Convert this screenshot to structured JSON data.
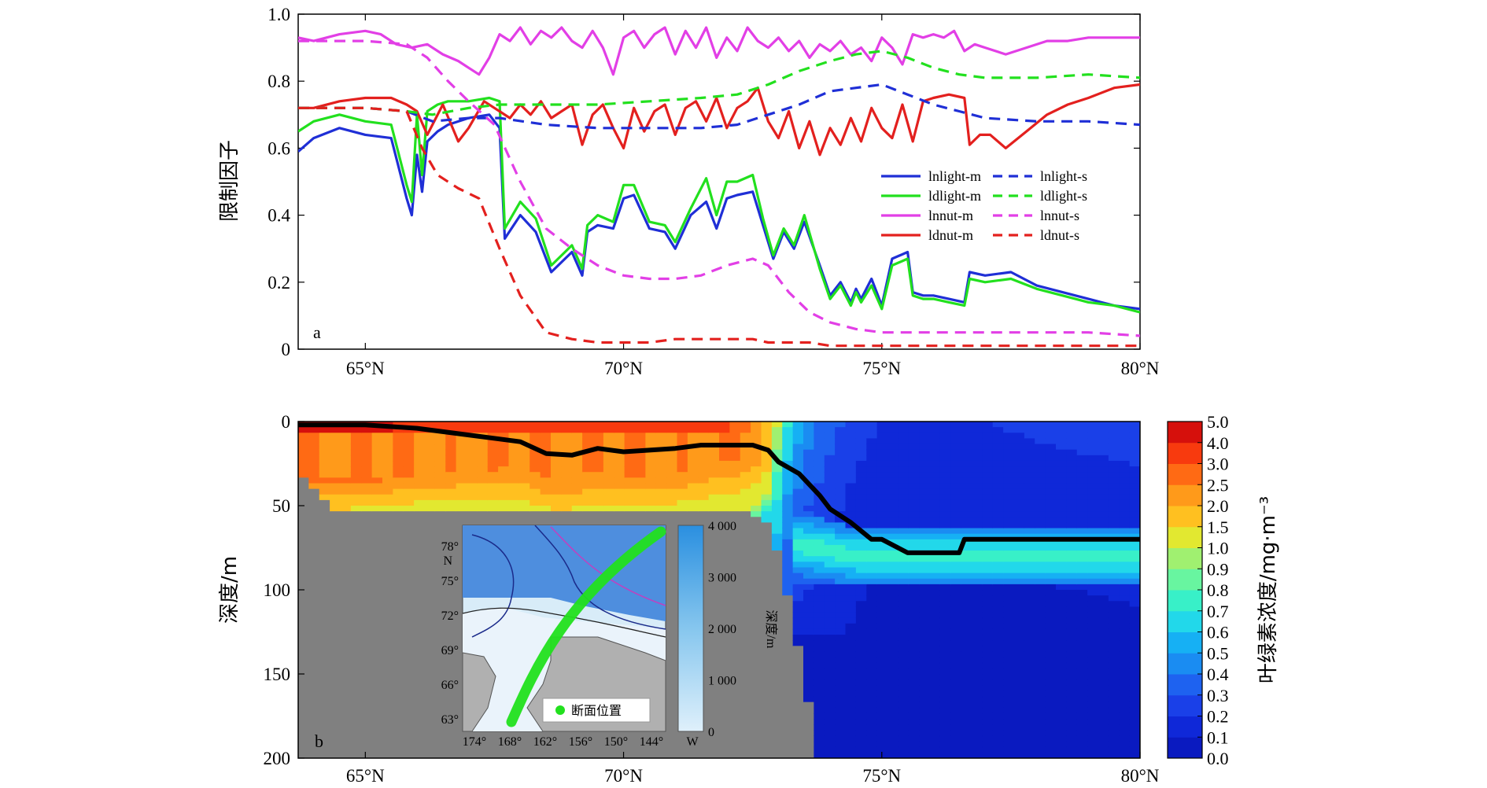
{
  "panel_a": {
    "panel_label": "a",
    "ylabel": "限制因子",
    "yticks": [
      "0",
      "0.2",
      "0.4",
      "0.6",
      "0.8",
      "1.0"
    ],
    "xticks": [
      "65°N",
      "70°N",
      "75°N",
      "80°N"
    ]
  },
  "panel_b": {
    "panel_label": "b",
    "ylabel": "深度/m",
    "yticks": [
      "0",
      "50",
      "100",
      "150",
      "200"
    ],
    "xticks": [
      "65°N",
      "70°N",
      "75°N",
      "80°N"
    ],
    "colorbar_label": "叶绿素浓度/mg·m⁻³",
    "colorbar_ticks": [
      "0.0",
      "0.1",
      "0.2",
      "0.3",
      "0.4",
      "0.5",
      "0.6",
      "0.7",
      "0.8",
      "0.9",
      "1.0",
      "1.5",
      "2.0",
      "2.5",
      "3.0",
      "4.0",
      "5.0"
    ]
  },
  "inset": {
    "lat_labels": [
      "78°",
      "75°",
      "72°",
      "69°",
      "66°",
      "63°"
    ],
    "lat_suffix": "N",
    "lon_labels": [
      "174°",
      "168°",
      "162°",
      "156°",
      "150°",
      "144°"
    ],
    "lon_suffix": "W",
    "legend_label": "断面位置",
    "depth_axis_label": "深度/m",
    "depth_ticks": [
      "0",
      "1 000",
      "2 000",
      "3 000",
      "4 000"
    ]
  },
  "colors": {
    "blue": "#1f2fd6",
    "green": "#22e01e",
    "magenta": "#e23fe6",
    "red": "#e3201e",
    "land": "#808080",
    "contour": "#000000"
  },
  "chart_data": [
    {
      "type": "line",
      "panel": "a",
      "xlim": [
        63.7,
        80.0
      ],
      "ylim": [
        0,
        1.0
      ],
      "series": [
        {
          "name": "lnlight-m",
          "color": "blue",
          "style": "solid",
          "x": [
            63.7,
            64.0,
            64.5,
            65.0,
            65.5,
            65.8,
            65.9,
            66.0,
            66.1,
            66.2,
            66.4,
            66.6,
            67.0,
            67.4,
            67.6,
            67.7,
            68.0,
            68.3,
            68.6,
            69.0,
            69.2,
            69.3,
            69.5,
            69.8,
            70.0,
            70.2,
            70.5,
            70.8,
            71.0,
            71.3,
            71.6,
            71.8,
            72.0,
            72.2,
            72.5,
            72.7,
            72.9,
            73.1,
            73.3,
            73.5,
            73.8,
            74.0,
            74.2,
            74.4,
            74.5,
            74.6,
            74.8,
            75.0,
            75.2,
            75.5,
            75.6,
            75.8,
            76.0,
            76.3,
            76.6,
            76.7,
            77.0,
            77.5,
            78.0,
            78.5,
            79.0,
            79.5,
            80.0
          ],
          "y": [
            0.59,
            0.63,
            0.66,
            0.64,
            0.63,
            0.45,
            0.4,
            0.58,
            0.47,
            0.62,
            0.65,
            0.67,
            0.69,
            0.7,
            0.66,
            0.33,
            0.4,
            0.35,
            0.23,
            0.29,
            0.22,
            0.35,
            0.37,
            0.36,
            0.45,
            0.46,
            0.36,
            0.35,
            0.3,
            0.4,
            0.44,
            0.36,
            0.45,
            0.46,
            0.47,
            0.37,
            0.27,
            0.35,
            0.3,
            0.38,
            0.25,
            0.16,
            0.2,
            0.14,
            0.18,
            0.15,
            0.21,
            0.13,
            0.27,
            0.29,
            0.17,
            0.16,
            0.16,
            0.15,
            0.14,
            0.23,
            0.22,
            0.23,
            0.19,
            0.17,
            0.15,
            0.13,
            0.12
          ]
        },
        {
          "name": "ldlight-m",
          "color": "green",
          "style": "solid",
          "x": [
            63.7,
            64.0,
            64.5,
            65.0,
            65.5,
            65.8,
            65.9,
            66.0,
            66.1,
            66.2,
            66.4,
            66.6,
            67.0,
            67.4,
            67.6,
            67.7,
            68.0,
            68.3,
            68.6,
            69.0,
            69.2,
            69.3,
            69.5,
            69.8,
            70.0,
            70.2,
            70.5,
            70.8,
            71.0,
            71.3,
            71.6,
            71.8,
            72.0,
            72.2,
            72.5,
            72.7,
            72.9,
            73.1,
            73.3,
            73.5,
            73.8,
            74.0,
            74.2,
            74.4,
            74.5,
            74.6,
            74.8,
            75.0,
            75.2,
            75.5,
            75.6,
            75.8,
            76.0,
            76.3,
            76.6,
            76.7,
            77.0,
            77.5,
            78.0,
            78.5,
            79.0,
            79.5,
            80.0
          ],
          "y": [
            0.65,
            0.68,
            0.7,
            0.68,
            0.67,
            0.49,
            0.44,
            0.7,
            0.52,
            0.71,
            0.73,
            0.74,
            0.74,
            0.75,
            0.74,
            0.36,
            0.44,
            0.39,
            0.25,
            0.31,
            0.24,
            0.37,
            0.4,
            0.38,
            0.49,
            0.49,
            0.38,
            0.37,
            0.32,
            0.42,
            0.51,
            0.4,
            0.5,
            0.5,
            0.52,
            0.39,
            0.28,
            0.36,
            0.31,
            0.4,
            0.24,
            0.15,
            0.19,
            0.13,
            0.17,
            0.14,
            0.19,
            0.12,
            0.25,
            0.27,
            0.16,
            0.15,
            0.15,
            0.14,
            0.13,
            0.21,
            0.2,
            0.21,
            0.18,
            0.16,
            0.14,
            0.13,
            0.11
          ]
        },
        {
          "name": "lnnut-m",
          "color": "magenta",
          "style": "solid",
          "x": [
            63.7,
            64.0,
            64.5,
            65.0,
            65.3,
            65.6,
            65.9,
            66.2,
            66.5,
            66.8,
            67.0,
            67.2,
            67.4,
            67.6,
            67.8,
            68.0,
            68.2,
            68.4,
            68.6,
            68.8,
            69.0,
            69.2,
            69.4,
            69.6,
            69.8,
            70.0,
            70.2,
            70.4,
            70.6,
            70.8,
            71.0,
            71.2,
            71.4,
            71.6,
            71.8,
            72.0,
            72.2,
            72.4,
            72.6,
            72.8,
            73.0,
            73.2,
            73.4,
            73.6,
            73.8,
            74.0,
            74.2,
            74.4,
            74.6,
            74.8,
            75.0,
            75.2,
            75.4,
            75.6,
            75.8,
            76.0,
            76.2,
            76.4,
            76.6,
            76.8,
            77.0,
            77.4,
            77.8,
            78.2,
            78.6,
            79.0,
            79.5,
            80.0
          ],
          "y": [
            0.93,
            0.92,
            0.94,
            0.95,
            0.94,
            0.91,
            0.9,
            0.91,
            0.88,
            0.86,
            0.84,
            0.82,
            0.87,
            0.94,
            0.92,
            0.96,
            0.91,
            0.95,
            0.93,
            0.96,
            0.92,
            0.9,
            0.95,
            0.9,
            0.82,
            0.93,
            0.95,
            0.9,
            0.94,
            0.96,
            0.88,
            0.95,
            0.9,
            0.96,
            0.87,
            0.93,
            0.89,
            0.96,
            0.92,
            0.9,
            0.93,
            0.89,
            0.92,
            0.87,
            0.91,
            0.89,
            0.92,
            0.88,
            0.9,
            0.86,
            0.93,
            0.9,
            0.85,
            0.94,
            0.93,
            0.94,
            0.93,
            0.95,
            0.89,
            0.91,
            0.9,
            0.88,
            0.9,
            0.92,
            0.92,
            0.93,
            0.93,
            0.93
          ]
        },
        {
          "name": "ldnut-m",
          "color": "red",
          "style": "solid",
          "x": [
            63.7,
            64.0,
            64.5,
            65.0,
            65.5,
            65.8,
            66.0,
            66.2,
            66.5,
            66.8,
            67.0,
            67.3,
            67.5,
            67.8,
            68.0,
            68.2,
            68.4,
            68.6,
            68.8,
            69.0,
            69.2,
            69.4,
            69.6,
            69.8,
            70.0,
            70.2,
            70.4,
            70.6,
            70.8,
            71.0,
            71.2,
            71.4,
            71.6,
            71.8,
            72.0,
            72.2,
            72.4,
            72.6,
            72.8,
            73.0,
            73.2,
            73.4,
            73.6,
            73.8,
            74.0,
            74.2,
            74.4,
            74.6,
            74.8,
            75.0,
            75.2,
            75.4,
            75.6,
            75.8,
            76.0,
            76.3,
            76.6,
            76.7,
            76.9,
            77.1,
            77.4,
            77.8,
            78.2,
            78.6,
            79.0,
            79.5,
            80.0
          ],
          "y": [
            0.72,
            0.72,
            0.74,
            0.75,
            0.75,
            0.73,
            0.71,
            0.64,
            0.73,
            0.62,
            0.66,
            0.74,
            0.72,
            0.69,
            0.73,
            0.7,
            0.74,
            0.69,
            0.71,
            0.73,
            0.61,
            0.7,
            0.73,
            0.66,
            0.6,
            0.72,
            0.65,
            0.71,
            0.73,
            0.64,
            0.72,
            0.74,
            0.68,
            0.75,
            0.66,
            0.72,
            0.74,
            0.78,
            0.68,
            0.63,
            0.71,
            0.6,
            0.68,
            0.58,
            0.66,
            0.61,
            0.69,
            0.62,
            0.72,
            0.66,
            0.63,
            0.73,
            0.62,
            0.74,
            0.75,
            0.76,
            0.75,
            0.61,
            0.64,
            0.64,
            0.6,
            0.65,
            0.7,
            0.73,
            0.75,
            0.78,
            0.79
          ]
        },
        {
          "name": "lnlight-s",
          "color": "blue",
          "style": "dashed",
          "x": [
            63.7,
            65.0,
            65.8,
            66.3,
            67.0,
            67.6,
            68.5,
            69.5,
            70.5,
            71.5,
            72.2,
            72.8,
            73.4,
            74.0,
            74.5,
            75.0,
            75.5,
            76.0,
            76.5,
            77.0,
            78.0,
            79.0,
            80.0
          ],
          "y": [
            0.72,
            0.72,
            0.71,
            0.68,
            0.69,
            0.69,
            0.67,
            0.66,
            0.66,
            0.66,
            0.67,
            0.7,
            0.73,
            0.77,
            0.78,
            0.79,
            0.76,
            0.73,
            0.71,
            0.69,
            0.68,
            0.68,
            0.67
          ]
        },
        {
          "name": "ldlight-s",
          "color": "green",
          "style": "dashed",
          "x": [
            63.7,
            65.0,
            65.8,
            66.3,
            67.0,
            67.6,
            68.5,
            69.5,
            70.5,
            71.5,
            72.2,
            72.8,
            73.4,
            74.0,
            74.5,
            75.0,
            75.5,
            76.0,
            76.5,
            77.0,
            78.0,
            79.0,
            80.0
          ],
          "y": [
            0.72,
            0.72,
            0.71,
            0.7,
            0.72,
            0.73,
            0.73,
            0.73,
            0.74,
            0.75,
            0.76,
            0.79,
            0.83,
            0.86,
            0.88,
            0.89,
            0.87,
            0.84,
            0.82,
            0.81,
            0.81,
            0.82,
            0.81
          ]
        },
        {
          "name": "lnnut-s",
          "color": "magenta",
          "style": "dashed",
          "x": [
            63.7,
            65.0,
            65.8,
            66.2,
            66.6,
            67.0,
            67.5,
            68.0,
            68.5,
            69.0,
            69.5,
            70.0,
            70.5,
            71.0,
            71.5,
            72.0,
            72.5,
            72.8,
            73.2,
            73.6,
            74.0,
            74.5,
            75.0,
            75.5,
            76.0,
            77.0,
            78.0,
            79.0,
            80.0
          ],
          "y": [
            0.92,
            0.92,
            0.91,
            0.87,
            0.8,
            0.74,
            0.67,
            0.5,
            0.36,
            0.3,
            0.25,
            0.22,
            0.21,
            0.21,
            0.22,
            0.25,
            0.27,
            0.25,
            0.17,
            0.11,
            0.08,
            0.06,
            0.05,
            0.05,
            0.05,
            0.05,
            0.05,
            0.05,
            0.04
          ]
        },
        {
          "name": "ldnut-s",
          "color": "red",
          "style": "dashed",
          "x": [
            63.7,
            65.0,
            65.8,
            66.1,
            66.4,
            66.8,
            67.2,
            67.6,
            68.0,
            68.5,
            69.0,
            69.5,
            70.0,
            70.5,
            71.0,
            71.5,
            72.0,
            72.5,
            72.8,
            73.2,
            73.6,
            74.0,
            74.5,
            75.0,
            76.0,
            77.0,
            78.0,
            79.0,
            80.0
          ],
          "y": [
            0.72,
            0.72,
            0.71,
            0.6,
            0.52,
            0.48,
            0.45,
            0.3,
            0.16,
            0.05,
            0.03,
            0.02,
            0.02,
            0.02,
            0.03,
            0.03,
            0.03,
            0.03,
            0.02,
            0.02,
            0.02,
            0.01,
            0.01,
            0.01,
            0.01,
            0.01,
            0.01,
            0.01,
            0.01
          ]
        }
      ]
    },
    {
      "type": "heatmap",
      "panel": "b",
      "xlim": [
        63.7,
        80.0
      ],
      "ylim": [
        200,
        0
      ],
      "z_bounds": [
        0.0,
        0.1,
        0.2,
        0.3,
        0.4,
        0.5,
        0.6,
        0.7,
        0.8,
        0.9,
        1.0,
        1.5,
        2.0,
        2.5,
        3.0,
        4.0,
        5.0
      ],
      "z_colors": [
        "#0a1ac0",
        "#0f28d8",
        "#1a40e8",
        "#1e62f0",
        "#1a8cf2",
        "#16b0f4",
        "#22d8ea",
        "#38f0c8",
        "#68f5a0",
        "#a0f070",
        "#e2e830",
        "#ffc020",
        "#ff9a1a",
        "#ff6a14",
        "#f83a0e",
        "#d6100c",
        "#8a0606"
      ],
      "land_profile": {
        "lat": [
          63.7,
          64.0,
          64.5,
          65.0,
          65.5,
          66.0,
          67.0,
          68.0,
          69.0,
          70.0,
          71.0,
          72.0,
          72.5,
          72.8,
          73.0,
          73.3,
          73.6,
          73.7,
          80.0
        ],
        "depth": [
          30,
          40,
          55,
          55,
          55,
          55,
          55,
          55,
          55,
          55,
          55,
          55,
          55,
          60,
          80,
          120,
          170,
          200,
          200
        ]
      },
      "surface_profile": {
        "lat": [
          63.7,
          65.0,
          66.0,
          67.0,
          68.0,
          69.0,
          70.0,
          71.0,
          72.0,
          72.5,
          72.8,
          73.0,
          73.3,
          73.6,
          74.0,
          74.5,
          75.0,
          75.5,
          76.0,
          76.5,
          77.0,
          78.0,
          80.0
        ],
        "chl_surface": [
          4.5,
          4.2,
          3.8,
          3.5,
          3.4,
          3.2,
          3.3,
          3.3,
          3.0,
          2.6,
          1.8,
          0.9,
          0.6,
          0.45,
          0.35,
          0.25,
          0.2,
          0.2,
          0.18,
          0.2,
          0.2,
          0.22,
          0.25
        ]
      },
      "mixed_layer_depth": {
        "lat": [
          63.7,
          65.0,
          66.0,
          67.0,
          68.0,
          68.5,
          69.0,
          69.5,
          70.0,
          71.0,
          71.5,
          72.0,
          72.5,
          72.8,
          73.0,
          73.4,
          73.8,
          74.0,
          74.4,
          74.8,
          75.0,
          75.5,
          76.0,
          76.5,
          76.6,
          77.0,
          78.0,
          79.0,
          80.0
        ],
        "depth": [
          2,
          2,
          4,
          8,
          12,
          19,
          20,
          16,
          18,
          16,
          14,
          14,
          14,
          17,
          24,
          31,
          44,
          52,
          60,
          70,
          70,
          78,
          78,
          78,
          70,
          70,
          70,
          70,
          70
        ]
      },
      "dcm": {
        "lat_start": 74.5,
        "lat_end": 80.0,
        "depth_top": 65,
        "depth_bottom": 95,
        "value": 0.8
      }
    }
  ]
}
